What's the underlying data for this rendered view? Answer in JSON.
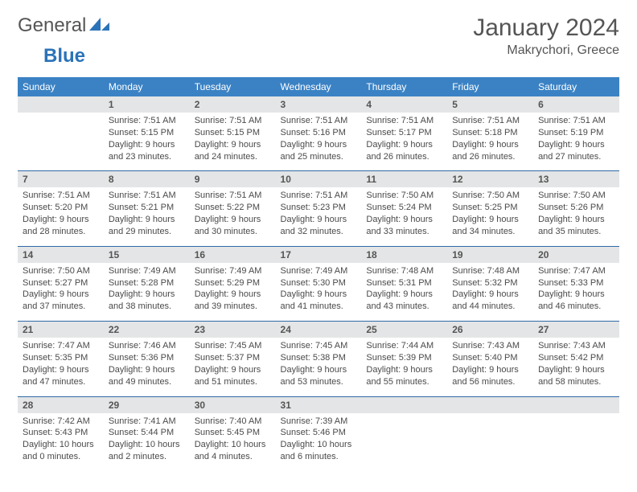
{
  "brand": {
    "part1": "General",
    "part2": "Blue"
  },
  "header": {
    "title": "January 2024",
    "location": "Makrychori, Greece"
  },
  "colors": {
    "header_bg": "#3b82c4",
    "header_text": "#ffffff",
    "daynum_bg": "#e4e5e6",
    "border": "#2f6aa8",
    "text": "#4a4a4a",
    "brand_blue": "#2b73b8"
  },
  "dow": [
    "Sunday",
    "Monday",
    "Tuesday",
    "Wednesday",
    "Thursday",
    "Friday",
    "Saturday"
  ],
  "weeks": [
    {
      "nums": [
        "",
        "1",
        "2",
        "3",
        "4",
        "5",
        "6"
      ],
      "cells": [
        [],
        [
          "Sunrise: 7:51 AM",
          "Sunset: 5:15 PM",
          "Daylight: 9 hours",
          "and 23 minutes."
        ],
        [
          "Sunrise: 7:51 AM",
          "Sunset: 5:15 PM",
          "Daylight: 9 hours",
          "and 24 minutes."
        ],
        [
          "Sunrise: 7:51 AM",
          "Sunset: 5:16 PM",
          "Daylight: 9 hours",
          "and 25 minutes."
        ],
        [
          "Sunrise: 7:51 AM",
          "Sunset: 5:17 PM",
          "Daylight: 9 hours",
          "and 26 minutes."
        ],
        [
          "Sunrise: 7:51 AM",
          "Sunset: 5:18 PM",
          "Daylight: 9 hours",
          "and 26 minutes."
        ],
        [
          "Sunrise: 7:51 AM",
          "Sunset: 5:19 PM",
          "Daylight: 9 hours",
          "and 27 minutes."
        ]
      ]
    },
    {
      "nums": [
        "7",
        "8",
        "9",
        "10",
        "11",
        "12",
        "13"
      ],
      "cells": [
        [
          "Sunrise: 7:51 AM",
          "Sunset: 5:20 PM",
          "Daylight: 9 hours",
          "and 28 minutes."
        ],
        [
          "Sunrise: 7:51 AM",
          "Sunset: 5:21 PM",
          "Daylight: 9 hours",
          "and 29 minutes."
        ],
        [
          "Sunrise: 7:51 AM",
          "Sunset: 5:22 PM",
          "Daylight: 9 hours",
          "and 30 minutes."
        ],
        [
          "Sunrise: 7:51 AM",
          "Sunset: 5:23 PM",
          "Daylight: 9 hours",
          "and 32 minutes."
        ],
        [
          "Sunrise: 7:50 AM",
          "Sunset: 5:24 PM",
          "Daylight: 9 hours",
          "and 33 minutes."
        ],
        [
          "Sunrise: 7:50 AM",
          "Sunset: 5:25 PM",
          "Daylight: 9 hours",
          "and 34 minutes."
        ],
        [
          "Sunrise: 7:50 AM",
          "Sunset: 5:26 PM",
          "Daylight: 9 hours",
          "and 35 minutes."
        ]
      ]
    },
    {
      "nums": [
        "14",
        "15",
        "16",
        "17",
        "18",
        "19",
        "20"
      ],
      "cells": [
        [
          "Sunrise: 7:50 AM",
          "Sunset: 5:27 PM",
          "Daylight: 9 hours",
          "and 37 minutes."
        ],
        [
          "Sunrise: 7:49 AM",
          "Sunset: 5:28 PM",
          "Daylight: 9 hours",
          "and 38 minutes."
        ],
        [
          "Sunrise: 7:49 AM",
          "Sunset: 5:29 PM",
          "Daylight: 9 hours",
          "and 39 minutes."
        ],
        [
          "Sunrise: 7:49 AM",
          "Sunset: 5:30 PM",
          "Daylight: 9 hours",
          "and 41 minutes."
        ],
        [
          "Sunrise: 7:48 AM",
          "Sunset: 5:31 PM",
          "Daylight: 9 hours",
          "and 43 minutes."
        ],
        [
          "Sunrise: 7:48 AM",
          "Sunset: 5:32 PM",
          "Daylight: 9 hours",
          "and 44 minutes."
        ],
        [
          "Sunrise: 7:47 AM",
          "Sunset: 5:33 PM",
          "Daylight: 9 hours",
          "and 46 minutes."
        ]
      ]
    },
    {
      "nums": [
        "21",
        "22",
        "23",
        "24",
        "25",
        "26",
        "27"
      ],
      "cells": [
        [
          "Sunrise: 7:47 AM",
          "Sunset: 5:35 PM",
          "Daylight: 9 hours",
          "and 47 minutes."
        ],
        [
          "Sunrise: 7:46 AM",
          "Sunset: 5:36 PM",
          "Daylight: 9 hours",
          "and 49 minutes."
        ],
        [
          "Sunrise: 7:45 AM",
          "Sunset: 5:37 PM",
          "Daylight: 9 hours",
          "and 51 minutes."
        ],
        [
          "Sunrise: 7:45 AM",
          "Sunset: 5:38 PM",
          "Daylight: 9 hours",
          "and 53 minutes."
        ],
        [
          "Sunrise: 7:44 AM",
          "Sunset: 5:39 PM",
          "Daylight: 9 hours",
          "and 55 minutes."
        ],
        [
          "Sunrise: 7:43 AM",
          "Sunset: 5:40 PM",
          "Daylight: 9 hours",
          "and 56 minutes."
        ],
        [
          "Sunrise: 7:43 AM",
          "Sunset: 5:42 PM",
          "Daylight: 9 hours",
          "and 58 minutes."
        ]
      ]
    },
    {
      "nums": [
        "28",
        "29",
        "30",
        "31",
        "",
        "",
        ""
      ],
      "cells": [
        [
          "Sunrise: 7:42 AM",
          "Sunset: 5:43 PM",
          "Daylight: 10 hours",
          "and 0 minutes."
        ],
        [
          "Sunrise: 7:41 AM",
          "Sunset: 5:44 PM",
          "Daylight: 10 hours",
          "and 2 minutes."
        ],
        [
          "Sunrise: 7:40 AM",
          "Sunset: 5:45 PM",
          "Daylight: 10 hours",
          "and 4 minutes."
        ],
        [
          "Sunrise: 7:39 AM",
          "Sunset: 5:46 PM",
          "Daylight: 10 hours",
          "and 6 minutes."
        ],
        [],
        [],
        []
      ]
    }
  ]
}
